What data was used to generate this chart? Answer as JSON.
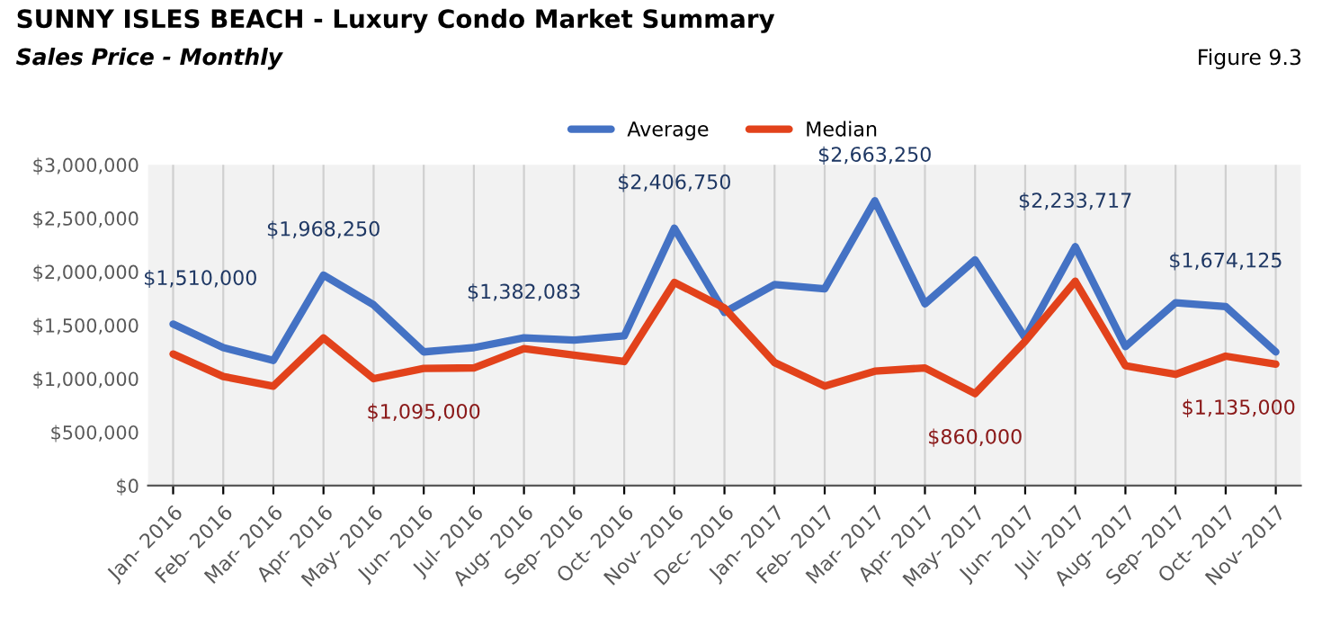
{
  "chart_data": {
    "type": "line",
    "title": "SUNNY ISLES BEACH - Luxury Condo Market Summary",
    "subtitle": "Sales Price - Monthly",
    "annotations": [
      "Figure 9.3"
    ],
    "categories": [
      "Jan- 2016",
      "Feb- 2016",
      "Mar- 2016",
      "Apr- 2016",
      "May- 2016",
      "Jun- 2016",
      "Jul- 2016",
      "Aug- 2016",
      "Sep- 2016",
      "Oct- 2016",
      "Nov- 2016",
      "Dec- 2016",
      "Jan- 2017",
      "Feb- 2017",
      "Mar- 2017",
      "Apr- 2017",
      "May- 2017",
      "Jun- 2017",
      "Jul- 2017",
      "Aug- 2017",
      "Sep- 2017",
      "Oct- 2017",
      "Nov- 2017"
    ],
    "series": [
      {
        "name": "Average",
        "color": "#4472c4",
        "values": [
          1510000,
          1290000,
          1170000,
          1968250,
          1690000,
          1250000,
          1290000,
          1382083,
          1360000,
          1400000,
          2406750,
          1620000,
          1880000,
          1840000,
          2663250,
          1700000,
          2110000,
          1380000,
          2233717,
          1300000,
          1710000,
          1674125,
          1250000
        ],
        "value_labels": [
          "$1,510,000",
          null,
          null,
          "$1,968,250",
          null,
          null,
          null,
          "$1,382,083",
          null,
          null,
          "$2,406,750",
          null,
          null,
          null,
          "$2,663,250",
          null,
          null,
          null,
          "$2,233,717",
          null,
          null,
          "$1,674,125",
          null
        ]
      },
      {
        "name": "Median",
        "color": "#e2421b",
        "values": [
          1230000,
          1020000,
          930000,
          1380000,
          1000000,
          1095000,
          1100000,
          1280000,
          1220000,
          1160000,
          1900000,
          1660000,
          1150000,
          930000,
          1070000,
          1100000,
          860000,
          1350000,
          1910000,
          1120000,
          1040000,
          1210000,
          1135000
        ],
        "value_labels": [
          null,
          null,
          null,
          null,
          null,
          "$1,095,000",
          null,
          null,
          null,
          null,
          null,
          null,
          null,
          null,
          null,
          null,
          "$860,000",
          null,
          null,
          null,
          null,
          null,
          "$1,135,000"
        ]
      }
    ],
    "ylim": [
      0,
      3000000
    ],
    "yticks": [
      {
        "value": 0,
        "label": "$0"
      },
      {
        "value": 500000,
        "label": "$500,000"
      },
      {
        "value": 1000000,
        "label": "$1,000,000"
      },
      {
        "value": 1500000,
        "label": "$1,500,000"
      },
      {
        "value": 2000000,
        "label": "$2,000,000"
      },
      {
        "value": 2500000,
        "label": "$2,500,000"
      },
      {
        "value": 3000000,
        "label": "$3,000,000"
      }
    ],
    "grid": "x",
    "legend": "top",
    "marker": "none",
    "line_style": "solid"
  }
}
